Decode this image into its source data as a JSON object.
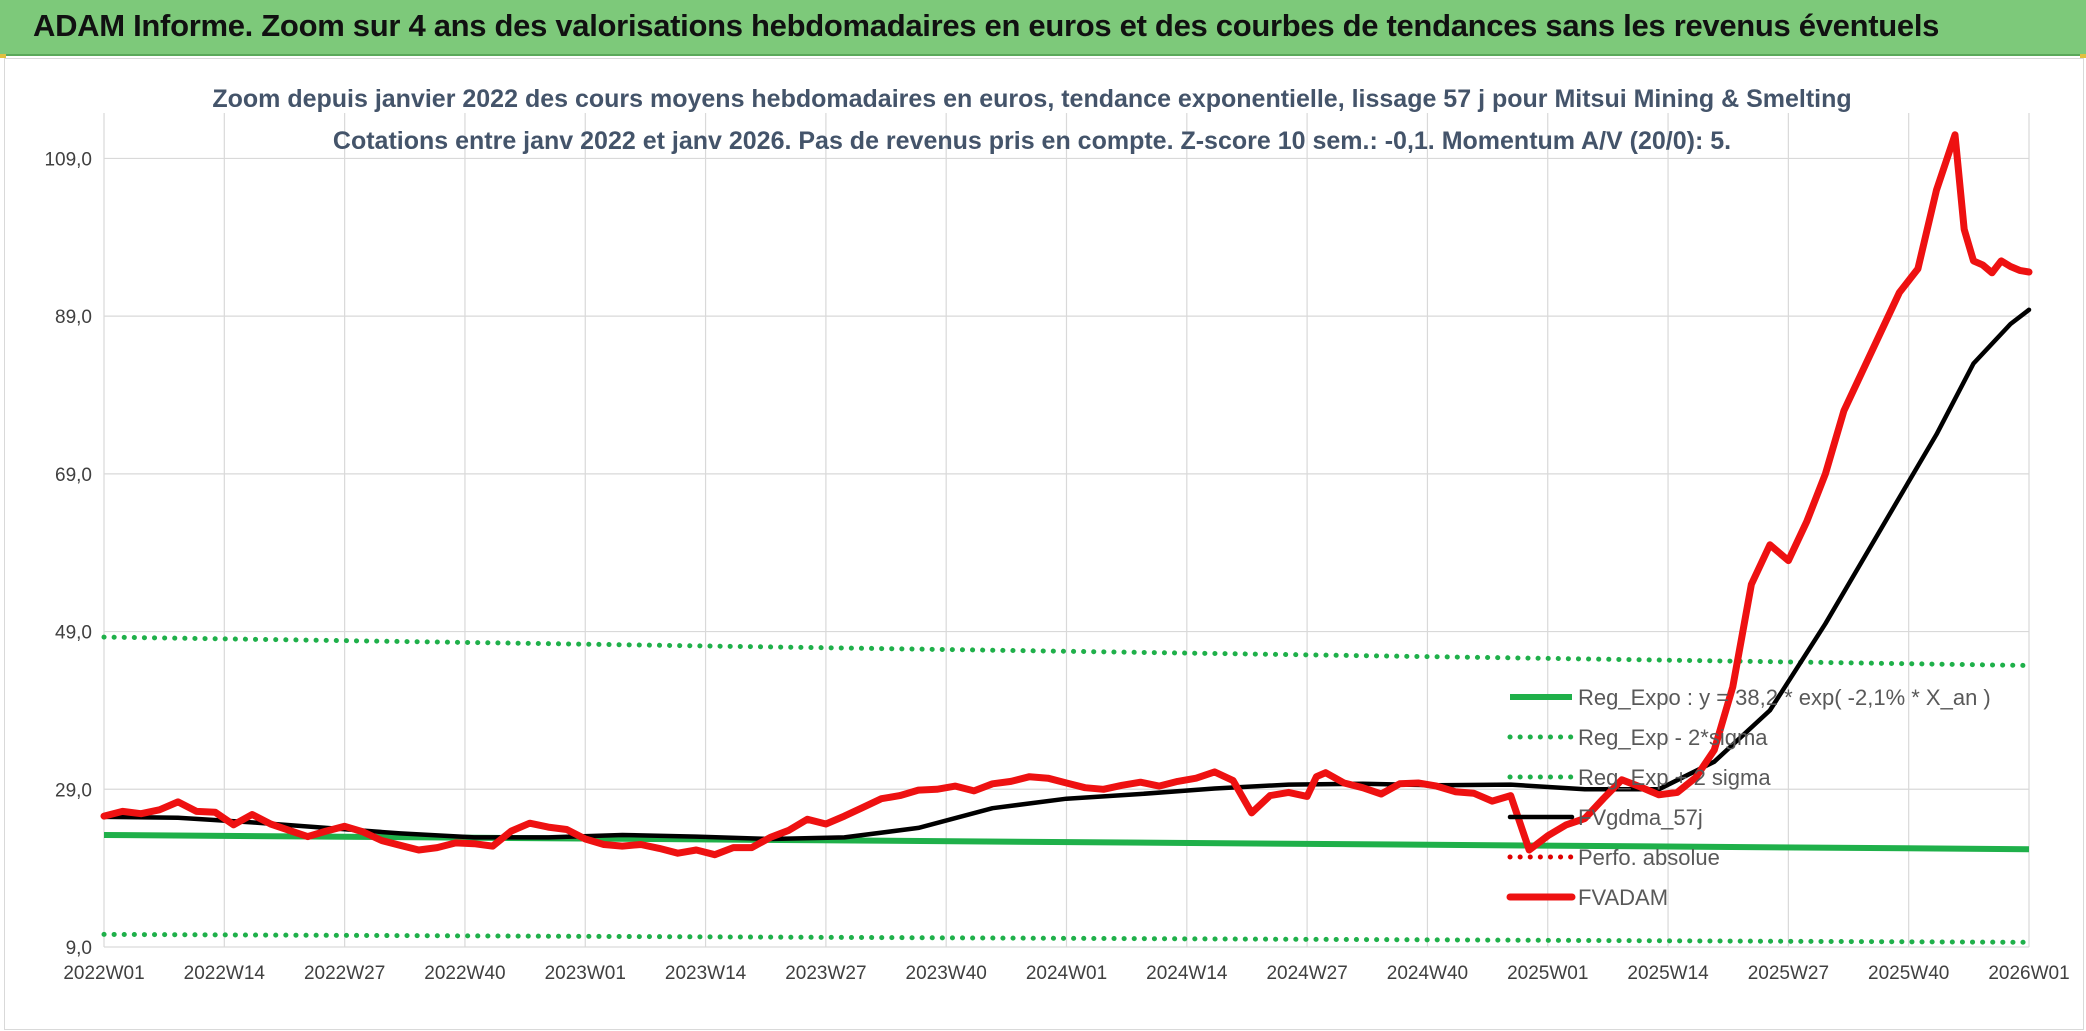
{
  "banner": {
    "title": "ADAM Informe. Zoom sur 4 ans des valorisations hebdomadaires en euros et des courbes de tendances sans les revenus éventuels"
  },
  "chart_data": {
    "type": "line",
    "title": "Zoom depuis janvier 2022 des cours moyens hebdomadaires en euros, tendance exponentielle, lissage 57 j pour Mitsui Mining & Smelting",
    "subtitle": "Cotations entre janv 2022 et janv 2026. Pas de revenus pris en compte. Z-score 10 sem.: -0,1. Momentum A/V (20/0): 5.",
    "xlabel": "",
    "ylabel": "",
    "ylim": [
      9,
      114
    ],
    "yticks": [
      9,
      29,
      49,
      69,
      89,
      109
    ],
    "ytick_labels": [
      "9,0",
      "29,0",
      "49,0",
      "69,0",
      "89,0",
      "109,0"
    ],
    "xlim": [
      0,
      208
    ],
    "xticks": [
      0,
      13,
      26,
      39,
      52,
      65,
      78,
      91,
      104,
      117,
      130,
      143,
      156,
      169,
      182,
      195,
      208
    ],
    "xtick_labels": [
      "2022W01",
      "2022W14",
      "2022W27",
      "2022W40",
      "2023W01",
      "2023W14",
      "2023W27",
      "2023W40",
      "2024W01",
      "2024W14",
      "2024W27",
      "2024W40",
      "2025W01",
      "2025W14",
      "2025W27",
      "2025W40",
      "2026W01"
    ],
    "grid": true,
    "legend_position": "right",
    "series": [
      {
        "name": "Reg_Expo : y = 38,2 * exp( -2,1% * X_an )",
        "color": "#1fb04a",
        "style": "solid",
        "x": [
          0,
          208
        ],
        "y": [
          23.2,
          21.4
        ]
      },
      {
        "name": "Reg_Exp - 2*sigma",
        "color": "#1fb04a",
        "style": "dotted",
        "x": [
          0,
          208
        ],
        "y": [
          10.6,
          9.6
        ]
      },
      {
        "name": "Reg_Exp + 2 sigma",
        "color": "#1fb04a",
        "style": "dotted",
        "x": [
          0,
          208
        ],
        "y": [
          48.3,
          44.7
        ]
      },
      {
        "name": "FVgdma_57j",
        "color": "#000000",
        "style": "solid",
        "x": [
          0,
          8,
          16,
          24,
          32,
          40,
          48,
          56,
          64,
          72,
          80,
          88,
          96,
          104,
          112,
          120,
          128,
          136,
          144,
          152,
          160,
          168,
          174,
          180,
          186,
          190,
          194,
          198,
          202,
          206,
          208
        ],
        "y": [
          25.5,
          25.4,
          24.8,
          24.1,
          23.4,
          22.9,
          22.9,
          23.2,
          23.0,
          22.7,
          22.9,
          24.1,
          26.6,
          27.8,
          28.4,
          29.1,
          29.6,
          29.7,
          29.5,
          29.6,
          29.0,
          29.0,
          32.5,
          39.0,
          50.0,
          58.0,
          66.0,
          74.0,
          83.0,
          88.0,
          89.8
        ]
      },
      {
        "name": "Perfo. absolue",
        "color": "#e00000",
        "style": "dotted",
        "x": [],
        "y": []
      },
      {
        "name": "FVADAM",
        "color": "#ee1111",
        "style": "solid",
        "x": [
          0,
          2,
          4,
          6,
          8,
          10,
          12,
          14,
          16,
          18,
          20,
          22,
          24,
          26,
          28,
          30,
          32,
          34,
          36,
          38,
          40,
          42,
          44,
          46,
          48,
          50,
          52,
          54,
          56,
          58,
          60,
          62,
          64,
          66,
          68,
          70,
          72,
          74,
          76,
          78,
          80,
          82,
          84,
          86,
          88,
          90,
          92,
          94,
          96,
          98,
          100,
          102,
          104,
          106,
          108,
          110,
          112,
          114,
          116,
          118,
          120,
          122,
          124,
          126,
          128,
          130,
          131,
          132,
          134,
          136,
          138,
          140,
          142,
          144,
          146,
          148,
          150,
          152,
          154,
          156,
          158,
          160,
          162,
          164,
          166,
          168,
          170,
          172,
          174,
          176,
          178,
          180,
          182,
          184,
          186,
          188,
          190,
          192,
          194,
          196,
          198,
          200,
          201,
          202,
          203,
          204,
          205,
          206,
          207,
          208
        ],
        "y": [
          25.6,
          26.2,
          25.9,
          26.4,
          27.4,
          26.2,
          26.1,
          24.5,
          25.8,
          24.6,
          23.8,
          23.0,
          23.7,
          24.3,
          23.6,
          22.5,
          21.9,
          21.3,
          21.6,
          22.2,
          22.1,
          21.8,
          23.7,
          24.7,
          24.2,
          23.9,
          22.7,
          22.0,
          21.8,
          22.0,
          21.5,
          20.9,
          21.3,
          20.7,
          21.6,
          21.6,
          22.9,
          23.8,
          25.2,
          24.6,
          25.6,
          26.7,
          27.8,
          28.2,
          28.9,
          29.0,
          29.4,
          28.8,
          29.7,
          30.0,
          30.6,
          30.4,
          29.8,
          29.2,
          29.0,
          29.5,
          29.9,
          29.4,
          30.0,
          30.4,
          31.2,
          30.1,
          26.0,
          28.2,
          28.6,
          28.1,
          30.6,
          31.1,
          29.8,
          29.2,
          28.4,
          29.7,
          29.8,
          29.4,
          28.7,
          28.5,
          27.5,
          28.2,
          21.3,
          23.1,
          24.5,
          25.3,
          27.8,
          30.2,
          29.3,
          28.3,
          28.6,
          30.5,
          34.0,
          42.0,
          55.0,
          60.0,
          58.0,
          63.0,
          69.0,
          77.0,
          82.0,
          87.0,
          92.0,
          95.0,
          105.0,
          112.0,
          100.0,
          96.0,
          95.5,
          94.5,
          96.0,
          95.3,
          94.8,
          94.6
        ]
      }
    ]
  }
}
